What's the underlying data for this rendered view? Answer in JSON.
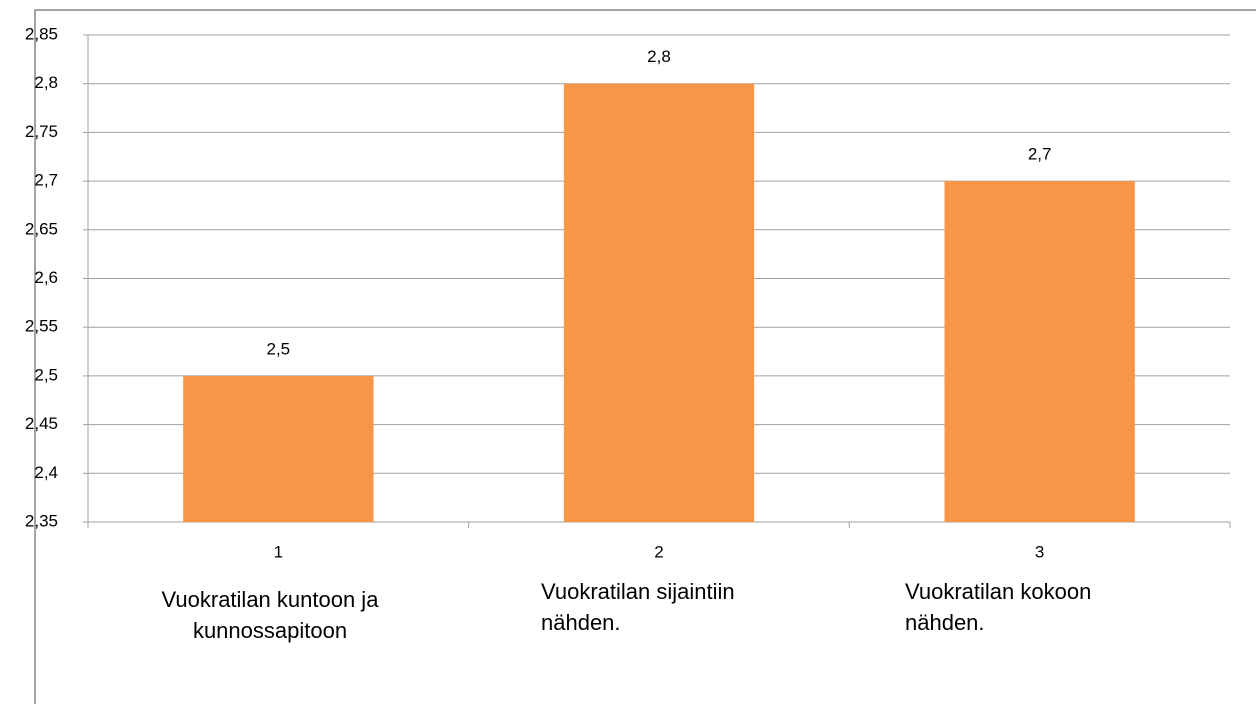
{
  "chart_data": {
    "type": "bar",
    "categories": [
      "1",
      "2",
      "3"
    ],
    "values": [
      2.5,
      2.8,
      2.7
    ],
    "value_labels": [
      "2,5",
      "2,8",
      "2,7"
    ],
    "color": "#f79646",
    "ylim": [
      2.35,
      2.85
    ],
    "yticks": [
      {
        "value": 2.35,
        "label": "2,35"
      },
      {
        "value": 2.4,
        "label": "2,4"
      },
      {
        "value": 2.45,
        "label": "2,45"
      },
      {
        "value": 2.5,
        "label": "2,5"
      },
      {
        "value": 2.55,
        "label": "2,55"
      },
      {
        "value": 2.6,
        "label": "2,6"
      },
      {
        "value": 2.65,
        "label": "2,65"
      },
      {
        "value": 2.7,
        "label": "2,7"
      },
      {
        "value": 2.75,
        "label": "2,75"
      },
      {
        "value": 2.8,
        "label": "2,8"
      },
      {
        "value": 2.85,
        "label": "2,85"
      }
    ],
    "grid": true,
    "annotations": [
      [
        "Vuokratilan kuntoon ja",
        "kunnossapitoon"
      ],
      [
        "Vuokratilan sijaintiin",
        "nähden."
      ],
      [
        "Vuokratilan kokoon",
        "nähden."
      ]
    ]
  }
}
